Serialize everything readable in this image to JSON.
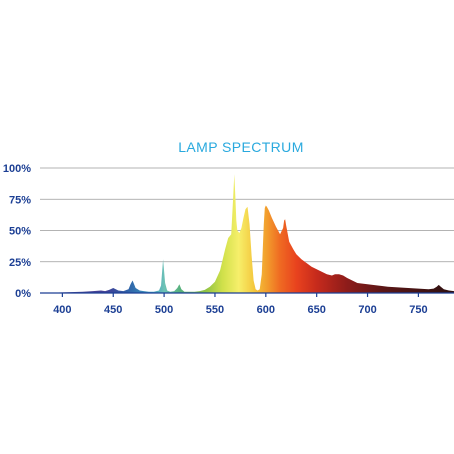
{
  "chart_data": {
    "type": "area",
    "title": "LAMP SPECTRUM",
    "xlabel": "",
    "ylabel": "",
    "xlim": [
      378,
      785
    ],
    "ylim": [
      0,
      100
    ],
    "x_ticks": [
      400,
      450,
      500,
      550,
      600,
      650,
      700,
      750
    ],
    "y_ticks": [
      {
        "value": 0,
        "label": "0%"
      },
      {
        "value": 25,
        "label": "25%"
      },
      {
        "value": 50,
        "label": "50%"
      },
      {
        "value": 75,
        "label": "75%"
      },
      {
        "value": 100,
        "label": "100%"
      }
    ],
    "grid": "horizontal",
    "legend": "none",
    "series": [
      {
        "x": [
          380,
          400,
          420,
          430,
          438,
          442,
          446,
          450,
          455,
          460,
          465,
          467,
          469,
          472,
          476,
          480,
          485,
          490,
          495,
          497,
          499,
          501,
          503,
          506,
          510,
          513,
          515,
          517,
          520,
          525,
          530,
          535,
          540,
          545,
          550,
          555,
          560,
          563,
          566,
          568,
          569,
          570,
          571,
          572,
          574,
          576,
          578,
          580,
          582,
          584,
          586,
          588,
          590,
          592,
          594,
          596,
          598,
          599,
          600,
          601,
          603,
          606,
          610,
          614,
          617,
          618,
          619,
          620,
          623,
          627,
          630,
          635,
          640,
          645,
          650,
          655,
          660,
          665,
          668,
          672,
          676,
          680,
          685,
          690,
          700,
          710,
          720,
          730,
          740,
          750,
          760,
          765,
          768,
          770,
          772,
          775,
          780,
          785
        ],
        "y": [
          0,
          0.5,
          1,
          1.5,
          2,
          1.5,
          2.5,
          4,
          2,
          1.5,
          3,
          7,
          10,
          4,
          2,
          1.5,
          1,
          1,
          2,
          6,
          27,
          8,
          2,
          1,
          1.5,
          4,
          7,
          3,
          1,
          1,
          1,
          1.5,
          2.5,
          5,
          9,
          18,
          35,
          44,
          47,
          78,
          95,
          78,
          58,
          50,
          48,
          52,
          60,
          67,
          69,
          55,
          30,
          10,
          3,
          2,
          3,
          15,
          55,
          68,
          70,
          69,
          66,
          60,
          53,
          47,
          52,
          58,
          59,
          54,
          41,
          35,
          31,
          27,
          24,
          21,
          19,
          17,
          15,
          14,
          15,
          15,
          14,
          12,
          10,
          8,
          7,
          6,
          5,
          4.5,
          4,
          3.5,
          3,
          3.5,
          5,
          6.5,
          5,
          3,
          2,
          1.5
        ]
      }
    ]
  }
}
